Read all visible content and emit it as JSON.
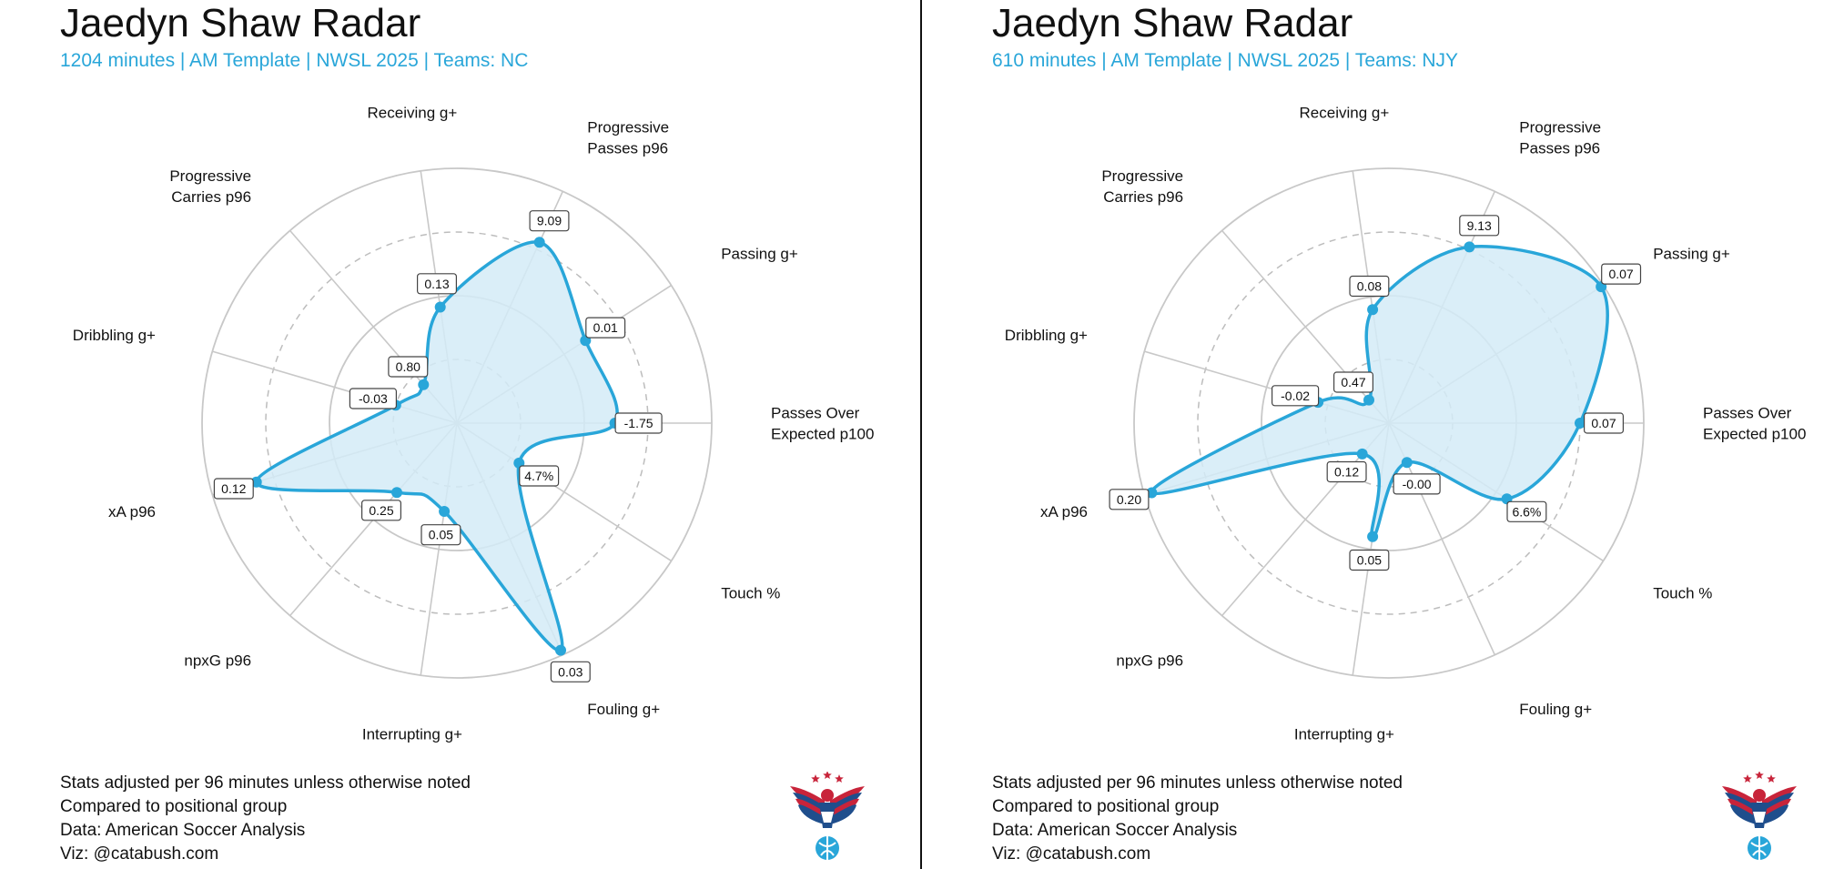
{
  "colors": {
    "accent": "#29a6d9",
    "fill": "#d4ebf7",
    "grid": "#c8c8c8",
    "grid_dashed": "#bdbdbd",
    "text": "#111111",
    "logo_red": "#c8243a",
    "logo_blue": "#1f4e8c"
  },
  "footer": {
    "lines": [
      "Stats adjusted per 96 minutes unless otherwise noted",
      "Compared to positional group",
      "Data: American Soccer Analysis",
      "Viz: @catabush.com"
    ]
  },
  "logo": {
    "icon": "eagle-soccer-logo"
  },
  "chart_data": [
    {
      "type": "radar",
      "title": "Jaedyn Shaw Radar",
      "subtitle": "1204 minutes | AM Template | NWSL 2025 | Teams: NC",
      "categories": [
        "Passes Over Expected p100",
        "Passing g+",
        "Progressive Passes p96",
        "Receiving g+",
        "Progressive Carries p96",
        "Dribbling g+",
        "xA p96",
        "npxG p96",
        "Interrupting g+",
        "Fouling g+",
        "Touch %"
      ],
      "category_labels": [
        [
          "Passes Over",
          "Expected p100"
        ],
        [
          "Passing g+"
        ],
        [
          "Progressive",
          "Passes p96"
        ],
        [
          "Receiving g+"
        ],
        [
          "Progressive",
          "Carries p96"
        ],
        [
          "Dribbling g+"
        ],
        [
          "xA p96"
        ],
        [
          "npxG p96"
        ],
        [
          "Interrupting g+"
        ],
        [
          "Fouling g+"
        ],
        [
          "Touch %"
        ]
      ],
      "value_labels": [
        "-1.75",
        "0.01",
        "9.09",
        "0.13",
        "0.80",
        "-0.03",
        "0.12",
        "0.25",
        "0.05",
        "0.03",
        "4.7%"
      ],
      "percentiles": [
        0.62,
        0.6,
        0.78,
        0.46,
        0.2,
        0.25,
        0.82,
        0.36,
        0.35,
        0.98,
        0.29
      ],
      "rings": [
        0.25,
        0.5,
        0.75,
        1.0
      ],
      "dashed_rings": [
        0.25,
        0.75
      ],
      "rlim": [
        0,
        1
      ],
      "grid": true,
      "legend": "none"
    },
    {
      "type": "radar",
      "title": "Jaedyn Shaw Radar",
      "subtitle": "610 minutes | AM Template | NWSL 2025 | Teams: NJY",
      "categories": [
        "Passes Over Expected p100",
        "Passing g+",
        "Progressive Passes p96",
        "Receiving g+",
        "Progressive Carries p96",
        "Dribbling g+",
        "xA p96",
        "npxG p96",
        "Interrupting g+",
        "Fouling g+",
        "Touch %"
      ],
      "category_labels": [
        [
          "Passes Over",
          "Expected p100"
        ],
        [
          "Passing g+"
        ],
        [
          "Progressive",
          "Passes p96"
        ],
        [
          "Receiving g+"
        ],
        [
          "Progressive",
          "Carries p96"
        ],
        [
          "Dribbling g+"
        ],
        [
          "xA p96"
        ],
        [
          "npxG p96"
        ],
        [
          "Interrupting g+"
        ],
        [
          "Fouling g+"
        ],
        [
          "Touch %"
        ]
      ],
      "value_labels": [
        "0.07",
        "0.07",
        "9.13",
        "0.08",
        "0.47",
        "-0.02",
        "0.20",
        "0.12",
        "0.05",
        "-0.00",
        "6.6%"
      ],
      "percentiles": [
        0.75,
        0.99,
        0.76,
        0.45,
        0.12,
        0.29,
        0.97,
        0.16,
        0.45,
        0.17,
        0.55
      ],
      "rings": [
        0.25,
        0.5,
        0.75,
        1.0
      ],
      "dashed_rings": [
        0.25,
        0.75
      ],
      "rlim": [
        0,
        1
      ],
      "grid": true,
      "legend": "none"
    }
  ]
}
